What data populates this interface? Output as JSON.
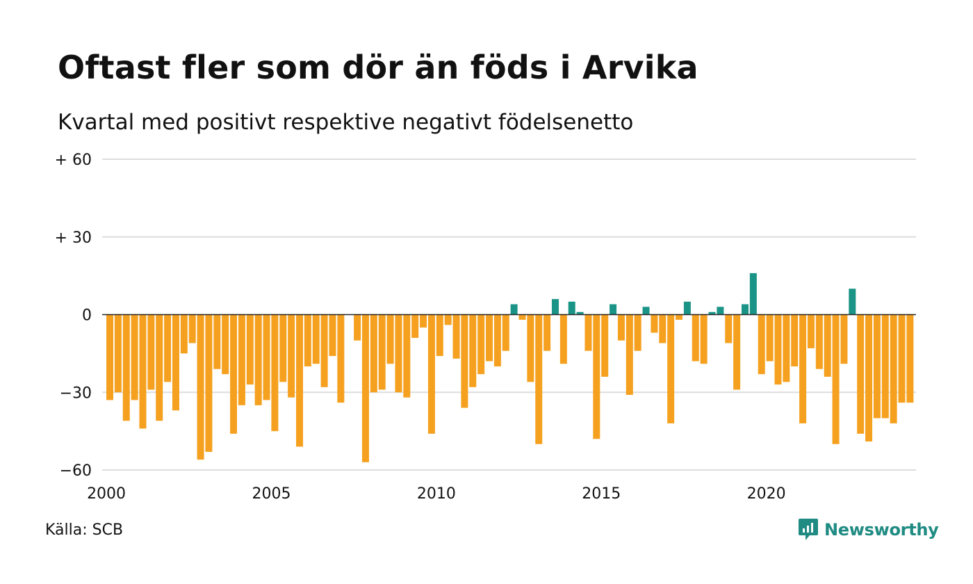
{
  "title": "Oftast fler som dör än föds i Arvika",
  "subtitle": "Kvartal med positivt respektive negativt födelsenetto",
  "source": "Källa: SCB",
  "logo": {
    "text": "Newsworthy",
    "icon": "newsworthy-logo-icon"
  },
  "colors": {
    "positive": "#1a9486",
    "negative": "#f5a11f",
    "grid": "#dddddd",
    "zero": "#222222"
  },
  "chart_data": {
    "type": "bar",
    "ylim": [
      -60,
      60
    ],
    "y_ticks": [
      {
        "value": 60,
        "label": "+ 60"
      },
      {
        "value": 30,
        "label": "+ 30"
      },
      {
        "value": 0,
        "label": "0"
      },
      {
        "value": -30,
        "label": "−30"
      },
      {
        "value": -60,
        "label": "−60"
      }
    ],
    "x_ticks": [
      {
        "value": 2000,
        "label": "2000"
      },
      {
        "value": 2005,
        "label": "2005"
      },
      {
        "value": 2010,
        "label": "2010"
      },
      {
        "value": 2015,
        "label": "2015"
      },
      {
        "value": 2020,
        "label": "2020"
      }
    ],
    "x_start": "2000 Q1",
    "grid": true,
    "values": [
      -33,
      -30,
      -41,
      -33,
      -44,
      -29,
      -41,
      -26,
      -37,
      -15,
      -11,
      -56,
      -53,
      -21,
      -23,
      -46,
      -35,
      -27,
      -35,
      -33,
      -45,
      -26,
      -32,
      -51,
      -20,
      -19,
      -28,
      -16,
      -34,
      0,
      -10,
      -57,
      -30,
      -29,
      -19,
      -30,
      -32,
      -9,
      -5,
      -46,
      -16,
      -4,
      -17,
      -36,
      -28,
      -23,
      -18,
      -20,
      -14,
      4,
      -2,
      -26,
      -50,
      -14,
      6,
      -19,
      5,
      1,
      -14,
      -48,
      -24,
      4,
      -10,
      -31,
      -14,
      3,
      -7,
      -11,
      -42,
      -2,
      5,
      -18,
      -19,
      1,
      3,
      -11,
      -29,
      4,
      16,
      -23,
      -18,
      -27,
      -26,
      -20,
      -42,
      -13,
      -21,
      -24,
      -50,
      -19,
      10,
      -46,
      -49,
      -40,
      -40,
      -42,
      -34,
      -34
    ]
  }
}
